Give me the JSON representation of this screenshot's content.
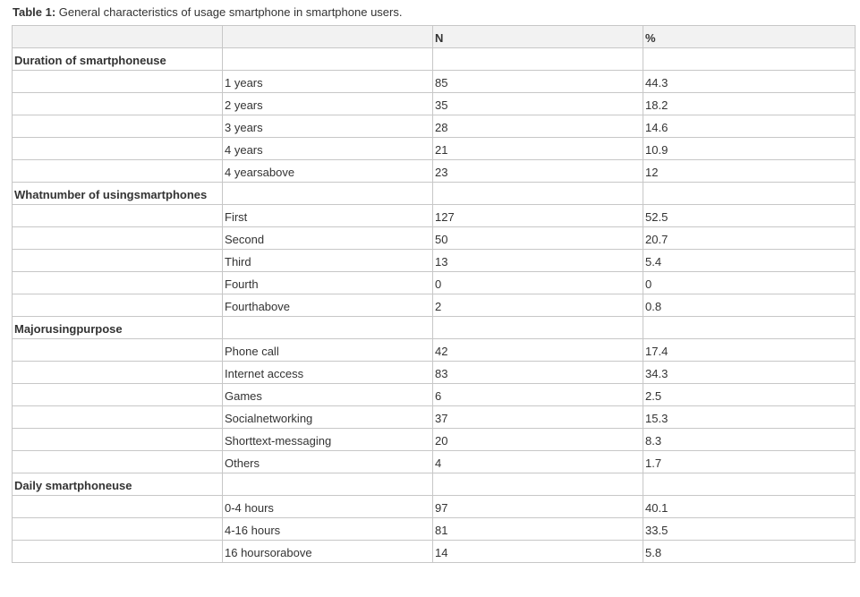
{
  "caption": {
    "label": "Table 1:",
    "text": " General characteristics of usage smartphone in smartphone users."
  },
  "header": [
    "",
    "",
    "N",
    "%"
  ],
  "groups": [
    {
      "title": "Duration of smartphoneuse",
      "rows": [
        {
          "label": "1 years",
          "n": "85",
          "pct": "44.3"
        },
        {
          "label": "2 years",
          "n": "35",
          "pct": "18.2"
        },
        {
          "label": "3 years",
          "n": "28",
          "pct": "14.6"
        },
        {
          "label": "4 years",
          "n": "21",
          "pct": "10.9"
        },
        {
          "label": "4 yearsabove",
          "n": "23",
          "pct": "12"
        }
      ]
    },
    {
      "title": "Whatnumber of usingsmartphones",
      "rows": [
        {
          "label": "First",
          "n": "127",
          "pct": "52.5"
        },
        {
          "label": "Second",
          "n": "50",
          "pct": "20.7"
        },
        {
          "label": "Third",
          "n": "13",
          "pct": "5.4"
        },
        {
          "label": "Fourth",
          "n": "0",
          "pct": "0"
        },
        {
          "label": "Fourthabove",
          "n": "2",
          "pct": "0.8"
        }
      ]
    },
    {
      "title": "Majorusingpurpose",
      "rows": [
        {
          "label": "Phone call",
          "n": "42",
          "pct": "17.4"
        },
        {
          "label": "Internet access",
          "n": "83",
          "pct": "34.3"
        },
        {
          "label": "Games",
          "n": "6",
          "pct": "2.5"
        },
        {
          "label": "Socialnetworking",
          "n": "37",
          "pct": "15.3"
        },
        {
          "label": "Shorttext-messaging",
          "n": "20",
          "pct": "8.3"
        },
        {
          "label": "Others",
          "n": "4",
          "pct": "1.7"
        }
      ]
    },
    {
      "title": "Daily smartphoneuse",
      "rows": [
        {
          "label": "0-4 hours",
          "n": "97",
          "pct": "40.1"
        },
        {
          "label": "4-16 hours",
          "n": "81",
          "pct": "33.5"
        },
        {
          "label": "16 hoursorabove",
          "n": "14",
          "pct": "5.8"
        }
      ]
    }
  ]
}
